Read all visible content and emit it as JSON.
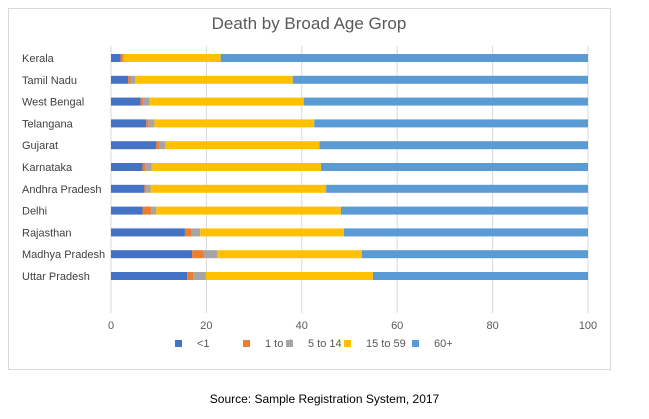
{
  "chart_data": {
    "type": "bar",
    "orientation": "horizontal",
    "stacked": true,
    "title": "Death by Broad Age Grop",
    "categories": [
      "Kerala",
      "Tamil Nadu",
      "West Bengal",
      "Telangana",
      "Gujarat",
      "Karnataka",
      "Andhra Pradesh",
      "Delhi",
      "Rajasthan",
      "Madhya Pradesh",
      "Uttar Pradesh"
    ],
    "series": [
      {
        "name": "<1",
        "color": "#4472c4",
        "values": [
          2.0,
          3.6,
          6.2,
          7.4,
          9.5,
          6.6,
          7.0,
          6.6,
          15.5,
          17.0,
          16.0
        ]
      },
      {
        "name": "1 to 4",
        "color": "#ed7d31",
        "values": [
          0.5,
          0.5,
          0.5,
          0.5,
          0.7,
          0.6,
          0.4,
          1.8,
          1.4,
          2.4,
          1.2
        ]
      },
      {
        "name": "5 to 14",
        "color": "#a5a5a5",
        "values": [
          0.2,
          1.0,
          1.4,
          1.2,
          1.2,
          1.3,
          0.9,
          1.1,
          1.8,
          2.9,
          2.7
        ]
      },
      {
        "name": "15 to 59",
        "color": "#ffc000",
        "values": [
          20.3,
          33.0,
          32.3,
          33.5,
          32.3,
          35.5,
          36.8,
          38.7,
          30.1,
          30.3,
          35.0
        ]
      },
      {
        "name": "60+",
        "color": "#5b9bd5",
        "values": [
          77.0,
          61.9,
          59.6,
          57.4,
          56.3,
          56.0,
          54.9,
          51.8,
          51.2,
          47.4,
          45.1
        ]
      }
    ],
    "xlim": [
      0,
      100
    ],
    "xticks": [
      "0",
      "20",
      "40",
      "60",
      "80",
      "100"
    ],
    "grid": true,
    "legend": "bottom"
  },
  "source": "Source: Sample Registration System, 2017"
}
